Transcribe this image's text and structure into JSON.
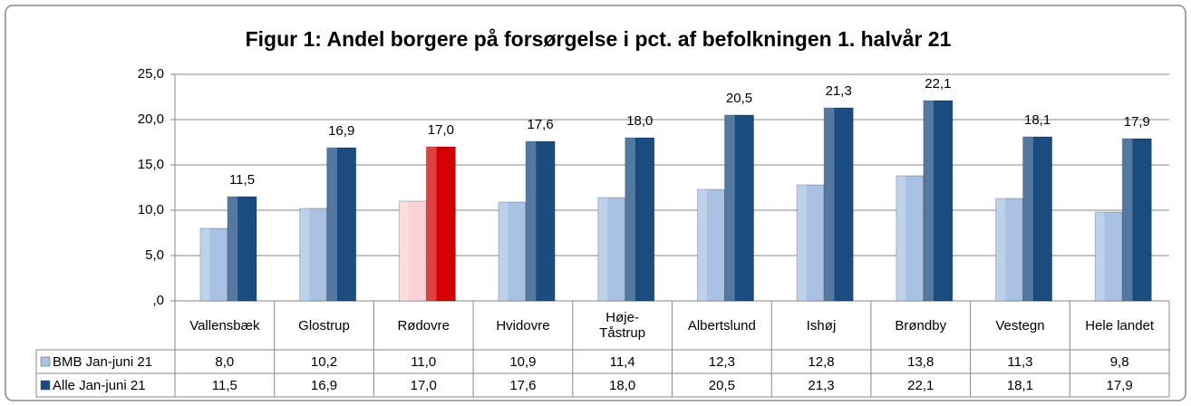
{
  "chart_data": {
    "type": "bar",
    "title": "Figur 1: Andel borgere på forsørgelse i pct. af befolkningen 1. halvår 21",
    "categories": [
      "Vallensbæk",
      "Glostrup",
      "Rødovre",
      "Hvidovre",
      "Høje-\nTåstrup",
      "Albertslund",
      "Ishøj",
      "Brøndby",
      "Vestegn",
      "Hele landet"
    ],
    "series": [
      {
        "name": "BMB Jan-juni 21",
        "color": "#a9c2e3",
        "colors": [
          "#a9c2e3",
          "#a9c2e3",
          "#f9d3d6",
          "#a9c2e3",
          "#a9c2e3",
          "#a9c2e3",
          "#a9c2e3",
          "#a9c2e3",
          "#a9c2e3",
          "#a9c2e3"
        ],
        "values": [
          8.0,
          10.2,
          11.0,
          10.9,
          11.4,
          12.3,
          12.8,
          13.8,
          11.3,
          9.8
        ],
        "value_labels": [
          "8,0",
          "10,2",
          "11,0",
          "10,9",
          "11,4",
          "12,3",
          "12,8",
          "13,8",
          "11,3",
          "9,8"
        ]
      },
      {
        "name": "Alle Jan-juni 21",
        "color": "#1a4c80",
        "colors": [
          "#1a4c80",
          "#1a4c80",
          "#d40000",
          "#1a4c80",
          "#1a4c80",
          "#1a4c80",
          "#1a4c80",
          "#1a4c80",
          "#1a4c80",
          "#1a4c80"
        ],
        "values": [
          11.5,
          16.9,
          17.0,
          17.6,
          18.0,
          20.5,
          21.3,
          22.1,
          18.1,
          17.9
        ],
        "value_labels": [
          "11,5",
          "16,9",
          "17,0",
          "17,6",
          "18,0",
          "20,5",
          "21,3",
          "22,1",
          "18,1",
          "17,9"
        ]
      }
    ],
    "ylim": [
      0,
      25
    ],
    "yticks": [
      {
        "value": 0,
        "label": ",0"
      },
      {
        "value": 5,
        "label": "5,0"
      },
      {
        "value": 10,
        "label": "10,0"
      },
      {
        "value": 15,
        "label": "15,0"
      },
      {
        "value": 20,
        "label": "20,0"
      },
      {
        "value": 25,
        "label": "25,0"
      }
    ],
    "grid": true
  }
}
